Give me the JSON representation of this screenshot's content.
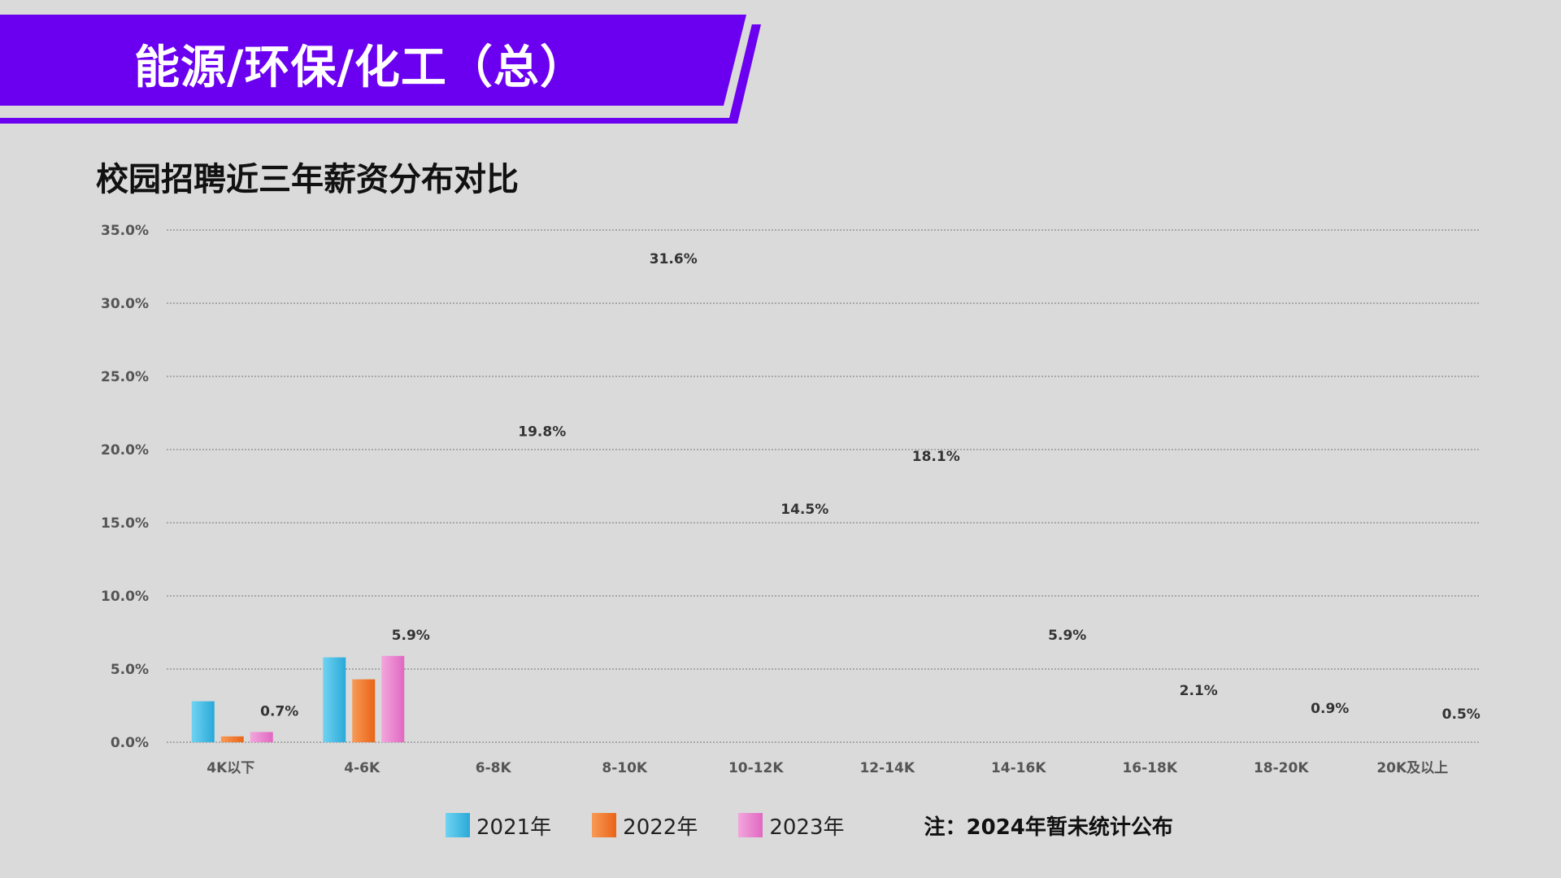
{
  "header": {
    "title": "能源/环保/化工（总）",
    "subtitle": "校园招聘近三年薪资分布对比"
  },
  "colors": {
    "banner": "#6b00f0",
    "background": "#dadada",
    "series": [
      "#3cbde6",
      "#f2782c",
      "#ea7ecb"
    ]
  },
  "note": "注：2024年暂未统计公布",
  "chart_data": {
    "type": "bar",
    "title": "校园招聘近三年薪资分布对比",
    "xlabel": "",
    "ylabel": "",
    "ylim": [
      0,
      35
    ],
    "grid": true,
    "legend_position": "bottom",
    "y_ticks": [
      "35.0%",
      "30.0%",
      "25.0%",
      "20.0%",
      "15.0%",
      "10.0%",
      "5.0%",
      "0.0%"
    ],
    "categories": [
      "4K以下",
      "4-6K",
      "6-8K",
      "8-10K",
      "10-12K",
      "12-14K",
      "14-16K",
      "16-18K",
      "18-20K",
      "20K及以上"
    ],
    "series": [
      {
        "name": "2021年",
        "values": [
          2.8,
          5.8,
          null,
          null,
          null,
          null,
          null,
          null,
          null,
          null
        ]
      },
      {
        "name": "2022年",
        "values": [
          0.4,
          4.3,
          null,
          null,
          null,
          null,
          null,
          null,
          null,
          null
        ]
      },
      {
        "name": "2023年",
        "values": [
          0.7,
          5.9,
          null,
          null,
          null,
          null,
          null,
          null,
          null,
          null
        ]
      }
    ],
    "data_labels": [
      "0.7%",
      "5.9%",
      "19.8%",
      "31.6%",
      "14.5%",
      "18.1%",
      "5.9%",
      "2.1%",
      "0.9%",
      "0.5%"
    ],
    "data_label_values": [
      0.7,
      5.9,
      19.8,
      31.6,
      14.5,
      18.1,
      5.9,
      2.1,
      0.9,
      0.5
    ]
  }
}
